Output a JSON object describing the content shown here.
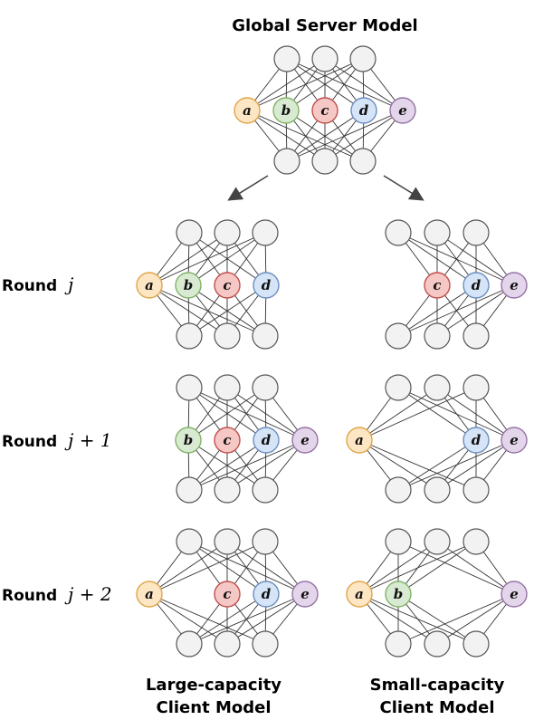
{
  "title": "Global Server Model",
  "rounds": [
    {
      "label": "Round",
      "var": "j"
    },
    {
      "label": "Round",
      "var": "j + 1"
    },
    {
      "label": "Round",
      "var": "j + 2"
    }
  ],
  "columns": {
    "large": {
      "line1": "Large-capacity",
      "line2": "Client Model"
    },
    "small": {
      "line1": "Small-capacity",
      "line2": "Client Model"
    }
  },
  "neuron_colors": {
    "a": {
      "fill": "#fde6c4",
      "stroke": "#e0a64a"
    },
    "b": {
      "fill": "#d9ead3",
      "stroke": "#82b366"
    },
    "c": {
      "fill": "#f5c8c5",
      "stroke": "#c0504d"
    },
    "d": {
      "fill": "#d6e4f8",
      "stroke": "#6c8ebf"
    },
    "e": {
      "fill": "#e4d6ea",
      "stroke": "#9673a6"
    }
  },
  "networks": {
    "global": [
      "a",
      "b",
      "c",
      "d",
      "e"
    ],
    "large_round_j": [
      "a",
      "b",
      "c",
      "d"
    ],
    "small_round_j": [
      "c",
      "d",
      "e"
    ],
    "large_round_j1": [
      "b",
      "c",
      "d",
      "e"
    ],
    "small_round_j1": [
      "a",
      "d",
      "e"
    ],
    "large_round_j2": [
      "a",
      "c",
      "d",
      "e"
    ],
    "small_round_j2": [
      "a",
      "b",
      "e"
    ]
  }
}
